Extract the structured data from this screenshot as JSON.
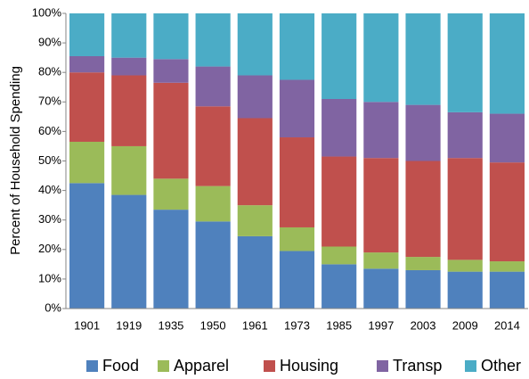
{
  "chart_data": {
    "type": "stacked_bar",
    "y_label": "Percent of Household Spending",
    "categories": [
      "1901",
      "1919",
      "1935",
      "1950",
      "1961",
      "1973",
      "1985",
      "1997",
      "2003",
      "2009",
      "2014"
    ],
    "series": [
      {
        "name": "Food",
        "color": "#4f81bd",
        "values": [
          42.5,
          38.5,
          33.5,
          29.5,
          24.5,
          19.5,
          15,
          13.5,
          13,
          12.5,
          12.5
        ]
      },
      {
        "name": "Apparel",
        "color": "#9bbb59",
        "values": [
          14,
          16.5,
          10.5,
          12,
          10.5,
          8,
          6,
          5.5,
          4.5,
          4,
          3.5
        ]
      },
      {
        "name": "Housing",
        "color": "#c0504d",
        "values": [
          23.5,
          24,
          32.5,
          27,
          29.5,
          30.5,
          30.5,
          32,
          32.5,
          34.5,
          33.5
        ]
      },
      {
        "name": "Transp",
        "color": "#8064a2",
        "values": [
          5.5,
          6,
          8,
          13.5,
          14.5,
          19.5,
          19.5,
          19,
          19,
          15.5,
          16.5
        ]
      },
      {
        "name": "Other",
        "color": "#4bacc6",
        "values": [
          14.5,
          15,
          15.5,
          18,
          21,
          22.5,
          29,
          30,
          31,
          33.5,
          34
        ]
      }
    ],
    "ylim": [
      0,
      100
    ],
    "yticks": [
      {
        "value": 0,
        "label": "0%"
      },
      {
        "value": 10,
        "label": "10%"
      },
      {
        "value": 20,
        "label": "20%"
      },
      {
        "value": 30,
        "label": "30%"
      },
      {
        "value": 40,
        "label": "40%"
      },
      {
        "value": 50,
        "label": "50%"
      },
      {
        "value": 60,
        "label": "60%"
      },
      {
        "value": 70,
        "label": "70%"
      },
      {
        "value": 80,
        "label": "80%"
      },
      {
        "value": 90,
        "label": "90%"
      },
      {
        "value": 100,
        "label": "100%"
      }
    ],
    "legend": "bottom"
  }
}
